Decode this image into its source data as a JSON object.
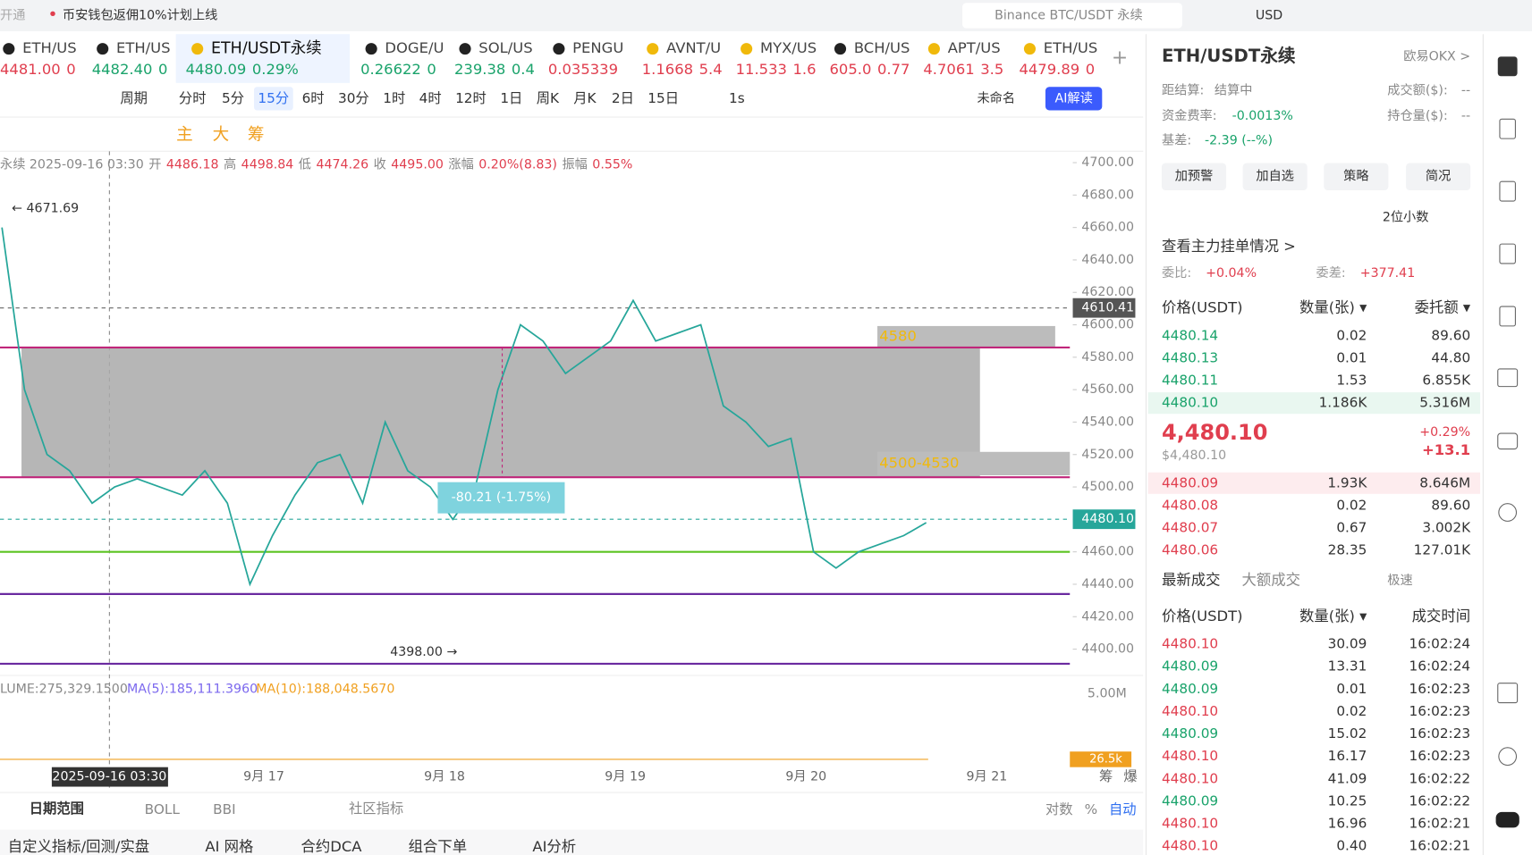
{
  "top_bar": {
    "left_tag": "开通",
    "notice": "币安钱包返佣10%计划上线",
    "search": "Binance BTC/USDT 永续",
    "currency": "USD"
  },
  "tabs": [
    {
      "name": "ETH/US",
      "price": "4481.00",
      "change": "0"
    },
    {
      "name": "ETH/US",
      "price": "4482.40",
      "change": "0"
    },
    {
      "name": "ETH/USDT永续",
      "price": "4480.09",
      "change": "0.29%"
    },
    {
      "name": "DOGE/U",
      "price": "0.26622",
      "change": "0"
    },
    {
      "name": "SOL/US",
      "price": "239.38",
      "change": "0.4"
    },
    {
      "name": "PENGU",
      "price": "0.035339",
      "change": ""
    },
    {
      "name": "AVNT/U",
      "price": "1.1668",
      "change": "5.4"
    },
    {
      "name": "MYX/US",
      "price": "11.533",
      "change": "1.6"
    },
    {
      "name": "BCH/US",
      "price": "605.0",
      "change": "0.77"
    },
    {
      "name": "APT/US",
      "price": "4.7061",
      "change": "3.5"
    },
    {
      "name": "ETH/US",
      "price": "4479.89",
      "change": "0"
    }
  ],
  "toolbar": {
    "period": "周期",
    "intervals": [
      "分时",
      "5分",
      "15分",
      "6时",
      "30分",
      "1时",
      "4时",
      "12时",
      "1日",
      "周K",
      "月K",
      "2日",
      "15日"
    ],
    "active_index": 2,
    "seconds": "1s",
    "layout_name": "未命名",
    "ai_button": "AI解读",
    "draw_tools": [
      "主",
      "大",
      "筹"
    ]
  },
  "info": [
    "永续 2025-09-16 03:30",
    "开",
    "4486.18",
    "高",
    "4498.84",
    "低",
    "4474.26",
    "收",
    "4495.00",
    "涨幅",
    "0.20%(8.83)",
    "振幅",
    "0.55%"
  ],
  "chart_data": {
    "type": "line",
    "ylim": [
      4385,
      4707
    ],
    "yticks": [
      {
        "value": 4400,
        "label": "4400.00"
      },
      {
        "value": 4420,
        "label": "4420.00"
      },
      {
        "value": 4440,
        "label": "4440.00"
      },
      {
        "value": 4460,
        "label": "4460.00"
      },
      {
        "value": 4480,
        "label": "4480.00"
      },
      {
        "value": 4500,
        "label": "4500.00"
      },
      {
        "value": 4520,
        "label": "4520.00"
      },
      {
        "value": 4540,
        "label": "4540.00"
      },
      {
        "value": 4560,
        "label": "4560.00"
      },
      {
        "value": 4580,
        "label": "4580.00"
      },
      {
        "value": 4600,
        "label": "4600.00"
      },
      {
        "value": 4620,
        "label": "4620.00"
      },
      {
        "value": 4640,
        "label": "4640.00"
      },
      {
        "value": 4660,
        "label": "4660.00"
      },
      {
        "value": 4680,
        "label": "4680.00"
      },
      {
        "value": 4700,
        "label": "4700.00"
      }
    ],
    "color": "#26a69a",
    "values": [
      4660,
      4560,
      4520,
      4510,
      4490,
      4500,
      4505,
      4500,
      4495,
      4510,
      4490,
      4440,
      4470,
      4495,
      4515,
      4520,
      4490,
      4540,
      4510,
      4500,
      4480,
      4500,
      4560,
      4600,
      4590,
      4570,
      4580,
      4590,
      4615,
      4590,
      4595,
      4600,
      4550,
      4540,
      4525,
      4530,
      4460,
      4450,
      4460,
      4465,
      4470,
      4478
    ],
    "levels": [
      {
        "value": 4586,
        "color": "#c0267a"
      },
      {
        "value": 4506,
        "color": "#c0267a"
      },
      {
        "value": 4460,
        "color": "#5cc422"
      },
      {
        "value": 4434,
        "color": "#6a2aa0"
      },
      {
        "value": 4391,
        "color": "#6a2aa0"
      }
    ],
    "zone": {
      "top": 4586,
      "bottom": 4506,
      "label_top": "4580",
      "label_bottom": "4500-4530"
    },
    "high": {
      "value": 4671.69,
      "label": "← 4671.69"
    },
    "low": {
      "value": 4398.0,
      "label": "4398.00 →"
    },
    "measure": "-80.21 (-1.75%)",
    "price_tags": [
      {
        "value": 4610.41,
        "label": "4610.41"
      },
      {
        "value": 4480.1,
        "label": "4480.10"
      }
    ],
    "cursor_label": "2025-09-16 03:30",
    "xlabels": [
      "9月 17",
      "9月 18",
      "9月 19",
      "9月 20",
      "9月 21"
    ]
  },
  "volume": {
    "legend": [
      "LUME:275,329.1500",
      "MA(5):185,111.3960",
      "MA(10):188,048.5670"
    ],
    "axis_label": "5.00M",
    "last": "26.5k"
  },
  "bottom": {
    "range": "日期范围",
    "indicators": [
      "BOLL",
      "BBI"
    ],
    "community": "社区指标",
    "options": [
      "对数",
      "%",
      "自动"
    ],
    "side": [
      "筹",
      "爆"
    ],
    "tabs": [
      "自定义指标/回测/实盘",
      "AI 网格",
      "合约DCA",
      "组合下单",
      "AI分析"
    ]
  },
  "panel": {
    "title": "ETH/USDT永续",
    "exchange": "欧易OKX >",
    "stats": [
      [
        "距结算:",
        "结算中",
        "成交额($):",
        "--"
      ],
      [
        "资金费率:",
        "-0.0013%",
        "持仓量($):",
        "--"
      ],
      [
        "基差:",
        "-2.39 (--%)",
        "",
        ""
      ]
    ],
    "buttons": [
      "加预警",
      "加自选",
      "策略",
      "简况"
    ],
    "decimals": "2位小数",
    "depth_link": "查看主力挂单情况 >",
    "ratio_label": "委比:",
    "ratio": "+0.04%",
    "diff_label": "委差:",
    "diff": "+377.41",
    "book_headers": [
      "价格(USDT)",
      "数量(张) ▾",
      "委托额 ▾"
    ],
    "asks": [
      [
        "4480.14",
        "0.02",
        "89.60"
      ],
      [
        "4480.13",
        "0.01",
        "44.80"
      ],
      [
        "4480.11",
        "1.53",
        "6.855K"
      ],
      [
        "4480.10",
        "1.186K",
        "5.316M"
      ]
    ],
    "mid": {
      "price": "4,480.10",
      "usd": "$4,480.10",
      "pct": "+0.29%",
      "abs": "+13.1"
    },
    "bids": [
      [
        "4480.09",
        "1.93K",
        "8.646M"
      ],
      [
        "4480.08",
        "0.02",
        "89.60"
      ],
      [
        "4480.07",
        "0.67",
        "3.002K"
      ],
      [
        "4480.06",
        "28.35",
        "127.01K"
      ]
    ],
    "trade_tabs": [
      "最新成交",
      "大额成交"
    ],
    "fast": "极速",
    "trade_headers": [
      "价格(USDT)",
      "数量(张) ▾",
      "成交时间"
    ],
    "trades": [
      {
        "row": [
          "4480.10",
          "30.09",
          "16:02:24"
        ],
        "color": "#e03e4e"
      },
      {
        "row": [
          "4480.09",
          "13.31",
          "16:02:24"
        ],
        "color": "#1aa36b"
      },
      {
        "row": [
          "4480.09",
          "0.01",
          "16:02:23"
        ],
        "color": "#1aa36b"
      },
      {
        "row": [
          "4480.10",
          "0.02",
          "16:02:23"
        ],
        "color": "#e03e4e"
      },
      {
        "row": [
          "4480.09",
          "15.02",
          "16:02:23"
        ],
        "color": "#1aa36b"
      },
      {
        "row": [
          "4480.10",
          "16.17",
          "16:02:23"
        ],
        "color": "#e03e4e"
      },
      {
        "row": [
          "4480.10",
          "41.09",
          "16:02:22"
        ],
        "color": "#e03e4e"
      },
      {
        "row": [
          "4480.09",
          "10.25",
          "16:02:22"
        ],
        "color": "#1aa36b"
      },
      {
        "row": [
          "4480.10",
          "16.96",
          "16:02:21"
        ],
        "color": "#e03e4e"
      },
      {
        "row": [
          "4480.10",
          "0.40",
          "16:02:21"
        ],
        "color": "#e03e4e"
      }
    ]
  }
}
